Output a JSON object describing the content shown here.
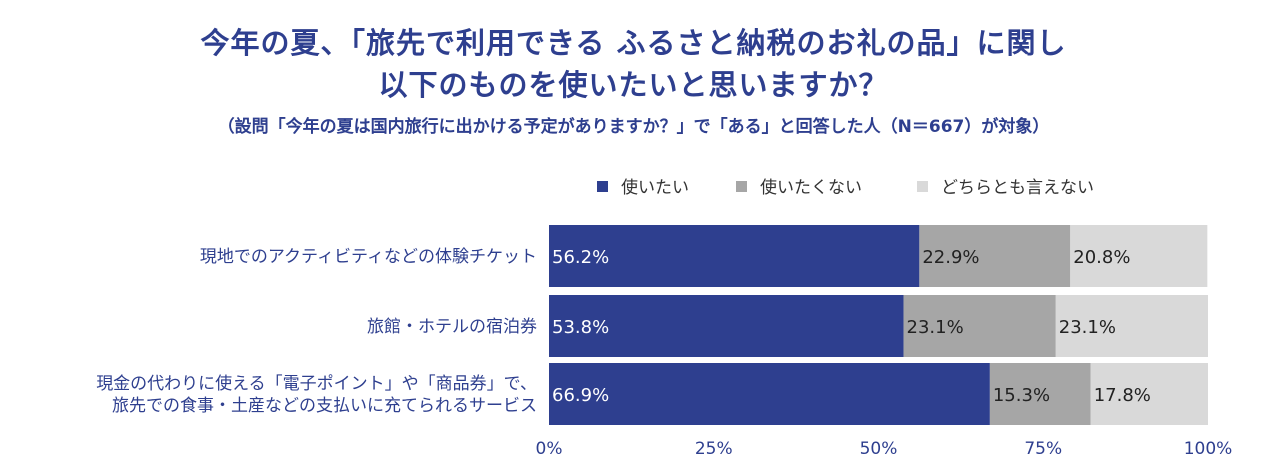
{
  "title_line1": "今年の夏、「旅先で利用できる ふるさと納税のお礼の品」に関し",
  "title_line2": "以下のものを使いたいと思いますか？",
  "subtitle": "（設問「今年の夏は国内旅行に出かける予定がありますか？」で「ある」と回答した人（N＝667）が対象）",
  "colors": {
    "title": "#2e3f8f",
    "use": "#2e3f8f",
    "not_use": "#a6a6a6",
    "neither": "#d9d9d9"
  },
  "chart_data": {
    "type": "bar",
    "orientation": "horizontal-stacked-100",
    "title": "今年の夏、「旅先で利用できる ふるさと納税のお礼の品」に関し 以下のものを使いたいと思いますか？",
    "categories": [
      [
        "現地でのアクティビティなどの体験チケット"
      ],
      [
        "旅館・ホテルの宿泊券"
      ],
      [
        "現金の代わりに使える「電子ポイント」や「商品券」で、",
        "旅先での食事・土産などの支払いに充てられるサービス"
      ]
    ],
    "series": [
      {
        "name": "使いたい",
        "values": [
          56.2,
          53.8,
          66.9
        ],
        "labels": [
          "56.2%",
          "53.8%",
          "66.9%"
        ],
        "color": "#2e3f8f"
      },
      {
        "name": "使いたくない",
        "values": [
          22.9,
          23.1,
          15.3
        ],
        "labels": [
          "22.9%",
          "23.1%",
          "15.3%"
        ],
        "color": "#a6a6a6"
      },
      {
        "name": "どちらとも言えない",
        "values": [
          20.8,
          23.1,
          17.8
        ],
        "labels": [
          "20.8%",
          "23.1%",
          "17.8%"
        ],
        "color": "#d9d9d9"
      }
    ],
    "xlim": [
      0,
      100
    ],
    "ticks": [
      "0%",
      "25%",
      "50%",
      "75%",
      "100%"
    ],
    "legend": "top-right",
    "grid": false
  }
}
